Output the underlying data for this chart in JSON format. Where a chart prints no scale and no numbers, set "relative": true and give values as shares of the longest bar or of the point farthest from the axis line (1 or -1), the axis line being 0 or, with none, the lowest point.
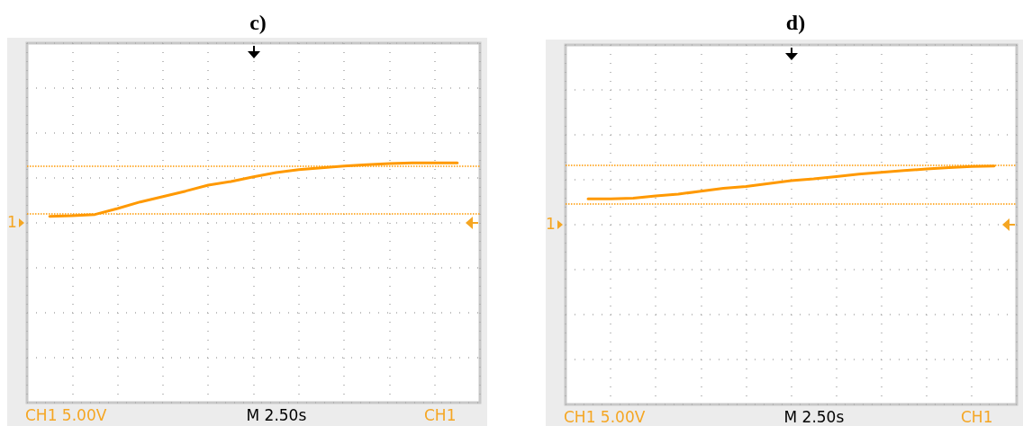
{
  "chart_data": [
    {
      "type": "line",
      "title": "c)",
      "relative": true,
      "grid": true,
      "marker": "none",
      "line_style": "solid",
      "categories": [
        null,
        null,
        null,
        null,
        null,
        null,
        null,
        null,
        null,
        null,
        null,
        null,
        null,
        null,
        null,
        null,
        null,
        null,
        null,
        null,
        null
      ],
      "series": [
        {
          "color": "#ff9900",
          "values": [
            null,
            0.11,
            0.12,
            0.14,
            0.24,
            0.35,
            0.44,
            0.53,
            0.63,
            0.69,
            0.77,
            0.84,
            0.89,
            0.92,
            0.95,
            0.97,
            0.99,
            1.0,
            1.0,
            1.0,
            null
          ]
        }
      ],
      "ref_lines": [
        {
          "axis": "y",
          "value": 0.95,
          "color": "#ff9900",
          "line_style": "dotted"
        },
        {
          "axis": "y",
          "value": 0.15,
          "color": "#ff9900",
          "line_style": "dotted"
        }
      ],
      "annotations": [
        "CH1 5.00V",
        "M 2.50s",
        "CH1",
        "1"
      ]
    },
    {
      "type": "line",
      "title": "d)",
      "relative": true,
      "grid": true,
      "marker": "none",
      "line_style": "solid",
      "categories": [
        null,
        null,
        null,
        null,
        null,
        null,
        null,
        null,
        null,
        null,
        null,
        null,
        null,
        null,
        null,
        null,
        null,
        null,
        null,
        null,
        null
      ],
      "series": [
        {
          "color": "#ff9900",
          "values": [
            null,
            0.44,
            0.44,
            0.45,
            0.49,
            0.52,
            0.57,
            0.62,
            0.65,
            0.7,
            0.75,
            0.78,
            0.82,
            0.86,
            0.89,
            0.92,
            0.95,
            0.97,
            0.99,
            1.0,
            null
          ]
        }
      ],
      "ref_lines": [
        {
          "axis": "y",
          "value": 1.02,
          "color": "#ff9900",
          "line_style": "dotted"
        },
        {
          "axis": "y",
          "value": 0.36,
          "color": "#ff9900",
          "line_style": "dotted"
        }
      ],
      "annotations": [
        "CH1 5.00V",
        "M 2.50s",
        "CH1",
        "1"
      ]
    }
  ]
}
